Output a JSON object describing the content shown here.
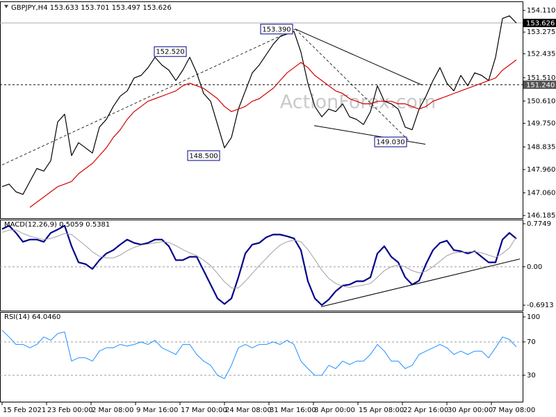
{
  "chart_data": [
    {
      "type": "line",
      "title": "GBPJPY,H4 153.633 153.701 153.497 153.626",
      "watermark": "ActionForex.com",
      "xlim": [
        -0.3,
        74.9
      ],
      "ylim": [
        146.08,
        154.46
      ],
      "yticks": [
        {
          "value": 154.11,
          "label": "154.110"
        },
        153.275,
        152.435,
        {
          "value": 151.51,
          "label": "151.510"
        },
        {
          "value": 150.61,
          "label": "150.610"
        },
        {
          "value": 149.75,
          "label": "149.750"
        },
        148.835,
        {
          "value": 147.96,
          "label": "147.960"
        },
        {
          "value": 147.06,
          "label": "147.060"
        },
        146.185
      ],
      "series": [
        {
          "color": "#000000",
          "line_width": 1.2,
          "values": [
            147.3,
            147.4,
            147.1,
            147.0,
            147.5,
            148.0,
            147.9,
            148.3,
            149.8,
            150.1,
            148.5,
            149.0,
            148.8,
            148.6,
            149.6,
            149.9,
            150.4,
            150.8,
            151.0,
            151.5,
            151.6,
            151.9,
            152.3,
            152.0,
            151.8,
            151.4,
            151.8,
            152.3,
            151.7,
            150.9,
            150.6,
            149.7,
            148.8,
            149.2,
            150.3,
            151.0,
            151.7,
            152.0,
            152.4,
            152.8,
            153.1,
            153.2,
            153.3,
            152.5,
            151.3,
            150.4,
            150.0,
            150.3,
            150.2,
            150.5,
            150.0,
            149.9,
            149.7,
            150.2,
            151.2,
            150.6,
            150.5,
            150.3,
            149.6,
            149.5,
            150.3,
            150.8,
            151.4,
            151.9,
            151.3,
            151.0,
            151.6,
            151.2,
            151.7,
            151.6,
            151.4,
            152.3,
            153.8,
            153.9,
            153.626
          ]
        },
        {
          "color": "#d40000",
          "line_width": 1.2,
          "values": [
            null,
            null,
            null,
            null,
            146.5,
            146.7,
            146.9,
            147.1,
            147.3,
            147.4,
            147.5,
            147.8,
            148.0,
            148.2,
            148.5,
            148.8,
            149.2,
            149.5,
            149.9,
            150.2,
            150.4,
            150.6,
            150.7,
            150.8,
            150.9,
            151.0,
            151.2,
            151.3,
            151.2,
            151.1,
            150.9,
            150.7,
            150.4,
            150.2,
            150.3,
            150.4,
            150.6,
            150.7,
            150.9,
            151.1,
            151.4,
            151.7,
            151.9,
            152.1,
            151.9,
            151.6,
            151.4,
            151.2,
            151.0,
            150.9,
            150.7,
            150.6,
            150.5,
            150.5,
            150.6,
            150.6,
            150.6,
            150.5,
            150.5,
            150.4,
            150.3,
            150.4,
            150.6,
            150.7,
            150.8,
            150.9,
            151.0,
            151.1,
            151.2,
            151.3,
            151.4,
            151.5,
            151.8,
            152.0,
            152.2
          ]
        }
      ],
      "hlines": [
        {
          "value": 151.24,
          "label": "151.240",
          "style": "dashed"
        },
        {
          "value": 153.626,
          "label": "153.626",
          "style": "solid"
        }
      ],
      "trendlines": [
        {
          "x": [
            0,
            42.2
          ],
          "values": [
            148.14,
            153.39
          ],
          "style": "dashed"
        },
        {
          "x": [
            42.2,
            60.4
          ],
          "values": [
            153.39,
            151.23
          ],
          "style": "solid"
        },
        {
          "x": [
            42.2,
            58.7
          ],
          "values": [
            153.39,
            149.03
          ],
          "style": "dashed"
        },
        {
          "x": [
            44.9,
            60.9
          ],
          "values": [
            149.66,
            148.94
          ],
          "style": "solid"
        }
      ],
      "annotations": [
        {
          "x": 42.2,
          "value": 153.39,
          "label": "153.390"
        },
        {
          "x": 26.9,
          "value": 152.52,
          "label": "152.520"
        },
        {
          "x": 31.7,
          "value": 148.5,
          "label": "148.500"
        },
        {
          "x": 58.6,
          "value": 149.03,
          "label": "149.030"
        }
      ]
    },
    {
      "type": "line",
      "title": "MACD(12,26,9) 0.5059 0.5381",
      "xlim": [
        -0.3,
        74.9
      ],
      "ylim": [
        -0.7907,
        0.8494
      ],
      "yticks": [
        0.7749,
        {
          "value": 0,
          "label": "0.00"
        },
        -0.6913
      ],
      "levels": [
        0
      ],
      "series": [
        {
          "color": "#00008b",
          "line_width": 2.2,
          "values": [
            0.68,
            0.74,
            0.61,
            0.45,
            0.49,
            0.49,
            0.45,
            0.61,
            0.67,
            0.74,
            0.37,
            0.08,
            0.05,
            -0.04,
            0.12,
            0.24,
            0.3,
            0.4,
            0.49,
            0.43,
            0.4,
            0.43,
            0.49,
            0.49,
            0.37,
            0.12,
            0.12,
            0.18,
            0.18,
            -0.07,
            -0.32,
            -0.57,
            -0.67,
            -0.57,
            -0.19,
            0.24,
            0.4,
            0.43,
            0.53,
            0.58,
            0.58,
            0.55,
            0.51,
            0.3,
            -0.26,
            -0.57,
            -0.69,
            -0.59,
            -0.44,
            -0.34,
            -0.32,
            -0.26,
            -0.26,
            -0.19,
            0.24,
            0.37,
            0.18,
            0.08,
            -0.19,
            -0.32,
            -0.25,
            0.05,
            0.3,
            0.43,
            0.47,
            0.3,
            0.28,
            0.24,
            0.28,
            0.18,
            0.08,
            0.08,
            0.49,
            0.61,
            0.5059
          ]
        },
        {
          "color": "#a0a0a0",
          "line_width": 1,
          "values": [
            0.62,
            0.66,
            0.66,
            0.6,
            0.55,
            0.52,
            0.49,
            0.51,
            0.55,
            0.6,
            0.58,
            0.48,
            0.38,
            0.27,
            0.19,
            0.16,
            0.16,
            0.21,
            0.29,
            0.35,
            0.39,
            0.41,
            0.43,
            0.45,
            0.44,
            0.38,
            0.31,
            0.25,
            0.2,
            0.12,
            0.02,
            -0.12,
            -0.27,
            -0.38,
            -0.38,
            -0.26,
            -0.12,
            0.02,
            0.15,
            0.28,
            0.39,
            0.45,
            0.48,
            0.45,
            0.31,
            0.13,
            -0.06,
            -0.21,
            -0.3,
            -0.35,
            -0.37,
            -0.35,
            -0.33,
            -0.3,
            -0.19,
            -0.07,
            0.0,
            0.03,
            0.0,
            -0.07,
            -0.11,
            -0.08,
            0.0,
            0.1,
            0.2,
            0.25,
            0.26,
            0.27,
            0.27,
            0.25,
            0.21,
            0.17,
            0.24,
            0.34,
            0.5381
          ]
        }
      ],
      "trendlines": [
        {
          "x": [
            45.9,
            74.5
          ],
          "values": [
            -0.72,
            0.14
          ],
          "style": "solid"
        }
      ]
    },
    {
      "type": "line",
      "title": "RSI(14) 64.0460",
      "xlim": [
        -0.3,
        74.9
      ],
      "ylim": [
        -1.7,
        105.8
      ],
      "yticks": [
        100,
        70,
        30
      ],
      "levels": [
        70,
        30
      ],
      "xticks": [
        {
          "value": 0,
          "label": "15 Feb 2021"
        },
        {
          "value": 6.4,
          "label": "23 Feb 00:00"
        },
        {
          "value": 12.8,
          "label": "2 Mar 08:00"
        },
        {
          "value": 19.2,
          "label": "9 Mar 16:00"
        },
        {
          "value": 25.6,
          "label": "17 Mar 00:00"
        },
        {
          "value": 32,
          "label": "24 Mar 08:00"
        },
        {
          "value": 38.4,
          "label": "31 Mar 16:00"
        },
        {
          "value": 44.8,
          "label": "8 Apr 00:00"
        },
        {
          "value": 51.2,
          "label": "15 Apr 08:00"
        },
        {
          "value": 57.6,
          "label": "22 Apr 16:00"
        },
        {
          "value": 64,
          "label": "30 Apr 00:00"
        },
        {
          "value": 70.4,
          "label": "7 May 08:00"
        }
      ],
      "series": [
        {
          "color": "#1e90ff",
          "line_width": 1,
          "values": [
            84,
            76,
            67,
            67,
            63,
            67,
            76,
            72,
            80,
            82,
            47,
            51,
            51,
            47,
            59,
            63,
            63,
            67,
            65,
            67,
            70,
            67,
            72,
            63,
            59,
            55,
            67,
            67,
            55,
            47,
            42,
            30,
            26,
            42,
            63,
            67,
            63,
            67,
            67,
            70,
            67,
            72,
            67,
            47,
            38,
            30,
            30,
            42,
            38,
            47,
            43,
            47,
            47,
            55,
            67,
            59,
            47,
            47,
            38,
            42,
            55,
            59,
            63,
            67,
            63,
            55,
            59,
            55,
            59,
            59,
            51,
            63,
            76,
            73,
            64.046
          ]
        }
      ]
    }
  ]
}
